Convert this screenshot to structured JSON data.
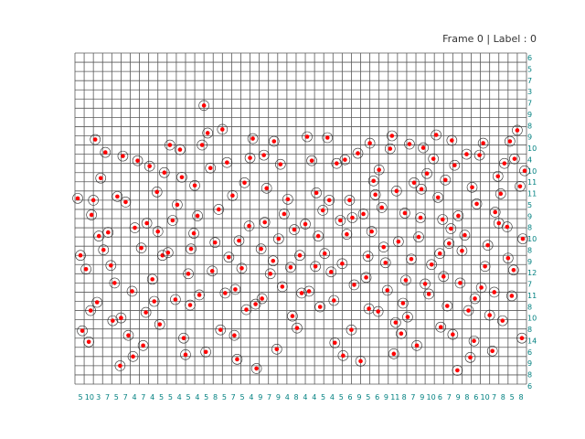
{
  "title": "Frame 0 | Label : 0",
  "colors": {
    "grid": "#5a5a5a",
    "point": "#ff0000",
    "ring": "#333333",
    "counts": "#008080",
    "background": "#ffffff"
  },
  "chart_data": {
    "type": "scatter",
    "title": "Frame 0 | Label : 0",
    "xlabel": "",
    "ylabel": "",
    "grid": "on",
    "grid_columns": 49,
    "grid_rows": 36,
    "xlim": [
      0,
      49
    ],
    "ylim": [
      0,
      36
    ],
    "column_counts": [
      5,
      10,
      3,
      7,
      5,
      7,
      4,
      7,
      4,
      5,
      5,
      4,
      5,
      4,
      5,
      8,
      5,
      7,
      5,
      4,
      9,
      7,
      9,
      4,
      8,
      4,
      4,
      5,
      4,
      5,
      6,
      9,
      5,
      6,
      9,
      11,
      8,
      7,
      9,
      10,
      6,
      7,
      9,
      8,
      6,
      10,
      7,
      8,
      5,
      8
    ],
    "row_counts": [
      6,
      5,
      7,
      3,
      7,
      9,
      8,
      9,
      10,
      4,
      10,
      11,
      11,
      5,
      9,
      8,
      10,
      8,
      9,
      12,
      7,
      11,
      8,
      10,
      8,
      14,
      6,
      9,
      8,
      6
    ],
    "series": [
      {
        "marker": "red dot with ring",
        "points": [
          [
            0.3,
            20.2
          ],
          [
            0.8,
            5.8
          ],
          [
            1.5,
            4.6
          ],
          [
            2.4,
            8.9
          ],
          [
            1.8,
            18.4
          ],
          [
            3.1,
            14.6
          ],
          [
            4.6,
            20.4
          ],
          [
            4.1,
            6.9
          ],
          [
            5.0,
            7.2
          ],
          [
            6.3,
            3.0
          ],
          [
            7.7,
            7.8
          ],
          [
            9.5,
            14.0
          ],
          [
            10.1,
            14.3
          ],
          [
            12.0,
            3.2
          ],
          [
            12.6,
            14.7
          ],
          [
            14.0,
            30.3
          ],
          [
            14.4,
            27.3
          ],
          [
            16.3,
            9.9
          ],
          [
            17.3,
            5.3
          ],
          [
            18.6,
            8.1
          ],
          [
            19.7,
            1.7
          ],
          [
            20.2,
            14.7
          ],
          [
            21.5,
            13.4
          ],
          [
            22.1,
            15.8
          ],
          [
            25.4,
            10.1
          ],
          [
            26.2,
            20.8
          ],
          [
            27.4,
            26.8
          ],
          [
            28.1,
            9.1
          ],
          [
            29.1,
            3.1
          ],
          [
            30.0,
            5.9
          ],
          [
            31.3,
            18.5
          ],
          [
            32.4,
            22.1
          ],
          [
            33.7,
            13.2
          ],
          [
            34.6,
            3.3
          ],
          [
            35.6,
            8.8
          ],
          [
            36.3,
            26.1
          ],
          [
            37.5,
            18.1
          ],
          [
            38.2,
            22.9
          ],
          [
            39.7,
            6.2
          ],
          [
            40.0,
            11.7
          ],
          [
            40.8,
            16.9
          ],
          [
            41.5,
            1.5
          ],
          [
            42.5,
            25.0
          ],
          [
            43.3,
            4.7
          ],
          [
            44.1,
            10.5
          ],
          [
            45.6,
            18.7
          ],
          [
            46.4,
            6.9
          ],
          [
            47.0,
            13.7
          ],
          [
            47.7,
            24.5
          ],
          [
            48.3,
            21.5
          ],
          [
            2.8,
            22.4
          ],
          [
            3.6,
            16.5
          ],
          [
            5.5,
            19.8
          ],
          [
            6.2,
            10.1
          ],
          [
            7.8,
            17.5
          ],
          [
            8.4,
            11.4
          ],
          [
            9.7,
            23.0
          ],
          [
            10.6,
            17.8
          ],
          [
            11.4,
            25.5
          ],
          [
            12.3,
            12.0
          ],
          [
            13.0,
            21.6
          ],
          [
            13.8,
            26.0
          ],
          [
            15.2,
            15.4
          ],
          [
            16.0,
            27.7
          ],
          [
            17.1,
            20.5
          ],
          [
            18.1,
            12.6
          ],
          [
            19.0,
            24.6
          ],
          [
            20.3,
            9.3
          ],
          [
            21.9,
            3.8
          ],
          [
            22.7,
            18.5
          ],
          [
            23.4,
            12.7
          ],
          [
            24.1,
            6.1
          ],
          [
            25.0,
            17.4
          ],
          [
            26.6,
            8.4
          ],
          [
            27.1,
            14.2
          ],
          [
            28.4,
            24.0
          ],
          [
            29.5,
            16.3
          ],
          [
            30.3,
            10.8
          ],
          [
            31.0,
            2.5
          ],
          [
            31.8,
            13.9
          ],
          [
            32.9,
            7.9
          ],
          [
            33.3,
            19.2
          ],
          [
            34.2,
            25.6
          ],
          [
            35.1,
            15.5
          ],
          [
            35.9,
            11.3
          ],
          [
            36.8,
            21.9
          ],
          [
            37.1,
            4.2
          ],
          [
            38.7,
            13.0
          ],
          [
            39.2,
            27.1
          ],
          [
            39.9,
            17.9
          ],
          [
            40.4,
            8.5
          ],
          [
            41.2,
            23.8
          ],
          [
            42.0,
            14.5
          ],
          [
            42.9,
            2.9
          ],
          [
            43.6,
            19.6
          ],
          [
            44.5,
            12.8
          ],
          [
            45.0,
            7.5
          ],
          [
            45.9,
            22.6
          ],
          [
            46.9,
            17.1
          ],
          [
            47.4,
            9.6
          ],
          [
            48.0,
            27.6
          ],
          [
            1.2,
            12.5
          ],
          [
            2.2,
            26.6
          ],
          [
            3.9,
            12.9
          ],
          [
            4.9,
            2.0
          ],
          [
            6.8,
            24.3
          ],
          [
            7.2,
            14.8
          ],
          [
            8.9,
            20.9
          ],
          [
            9.2,
            6.5
          ],
          [
            10.9,
            9.2
          ],
          [
            11.8,
            5.0
          ],
          [
            12.9,
            16.4
          ],
          [
            13.5,
            9.7
          ],
          [
            14.7,
            23.5
          ],
          [
            15.6,
            19.0
          ],
          [
            16.7,
            13.8
          ],
          [
            17.6,
            2.7
          ],
          [
            18.9,
            17.2
          ],
          [
            19.3,
            26.7
          ],
          [
            20.8,
            21.3
          ],
          [
            21.2,
            12.0
          ],
          [
            22.3,
            23.9
          ],
          [
            23.8,
            16.8
          ],
          [
            24.6,
            9.9
          ],
          [
            25.7,
            24.3
          ],
          [
            26.9,
            18.9
          ],
          [
            27.8,
            12.2
          ],
          [
            28.8,
            17.8
          ],
          [
            29.8,
            20.0
          ],
          [
            30.7,
            25.1
          ],
          [
            31.6,
            11.6
          ],
          [
            32.2,
            16.6
          ],
          [
            33.0,
            23.3
          ],
          [
            33.9,
            10.2
          ],
          [
            34.9,
            21.0
          ],
          [
            35.4,
            5.5
          ],
          [
            36.5,
            13.6
          ],
          [
            37.8,
            25.7
          ],
          [
            38.4,
            9.8
          ],
          [
            39.4,
            20.3
          ],
          [
            40.9,
            26.5
          ],
          [
            41.8,
            11.0
          ],
          [
            42.3,
            16.2
          ],
          [
            43.9,
            24.9
          ],
          [
            44.8,
            15.1
          ],
          [
            45.3,
            3.6
          ],
          [
            46.2,
            20.7
          ],
          [
            47.2,
            26.4
          ],
          [
            48.6,
            15.8
          ],
          [
            0.6,
            14.0
          ],
          [
            1.7,
            8.0
          ],
          [
            2.6,
            16.1
          ],
          [
            3.3,
            25.2
          ],
          [
            4.3,
            11.0
          ],
          [
            5.8,
            5.3
          ],
          [
            6.5,
            17.0
          ],
          [
            7.4,
            4.2
          ],
          [
            8.1,
            23.7
          ],
          [
            9.0,
            16.6
          ],
          [
            10.3,
            26.0
          ],
          [
            11.1,
            19.5
          ],
          [
            12.5,
            8.6
          ],
          [
            13.3,
            18.3
          ],
          [
            14.9,
            12.3
          ],
          [
            15.8,
            5.9
          ],
          [
            16.5,
            24.1
          ],
          [
            17.8,
            15.6
          ],
          [
            18.4,
            21.9
          ],
          [
            19.6,
            8.7
          ],
          [
            20.6,
            17.6
          ],
          [
            21.6,
            26.4
          ],
          [
            22.5,
            10.6
          ],
          [
            23.1,
            20.1
          ],
          [
            24.4,
            14.0
          ],
          [
            25.2,
            26.9
          ],
          [
            26.1,
            12.8
          ],
          [
            27.6,
            20.0
          ],
          [
            28.2,
            4.5
          ],
          [
            29.3,
            24.4
          ],
          [
            30.1,
            18.1
          ],
          [
            31.9,
            8.2
          ],
          [
            32.6,
            20.6
          ],
          [
            33.5,
            14.9
          ],
          [
            34.4,
            27.0
          ],
          [
            35.8,
            18.6
          ],
          [
            36.1,
            7.3
          ],
          [
            37.3,
            16.0
          ],
          [
            38.0,
            10.9
          ],
          [
            38.9,
            24.5
          ],
          [
            39.6,
            14.2
          ],
          [
            40.2,
            22.2
          ],
          [
            41.0,
            5.4
          ],
          [
            41.6,
            18.3
          ],
          [
            42.7,
            8.0
          ],
          [
            43.1,
            21.4
          ],
          [
            44.3,
            26.2
          ],
          [
            45.5,
            10.0
          ],
          [
            46.6,
            24.0
          ],
          [
            47.6,
            12.4
          ],
          [
            48.5,
            5.0
          ],
          [
            2.0,
            20.0
          ],
          [
            5.2,
            24.8
          ],
          [
            8.6,
            9.0
          ],
          [
            11.6,
            22.5
          ],
          [
            14.2,
            3.5
          ],
          [
            17.4,
            10.3
          ],
          [
            20.5,
            24.9
          ],
          [
            23.6,
            7.4
          ],
          [
            26.4,
            16.1
          ],
          [
            29.0,
            13.1
          ],
          [
            32.0,
            26.2
          ],
          [
            34.8,
            6.7
          ],
          [
            37.6,
            21.2
          ],
          [
            40.6,
            15.3
          ],
          [
            43.4,
            9.3
          ],
          [
            46.0,
            17.5
          ],
          [
            48.8,
            23.2
          ]
        ]
      }
    ]
  }
}
